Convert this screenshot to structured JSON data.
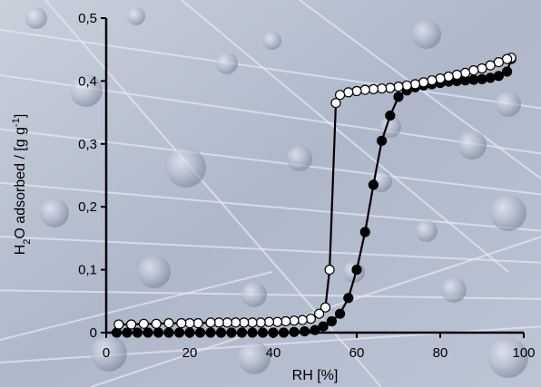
{
  "chart_data": {
    "type": "scatter",
    "xlabel": "RH [%]",
    "ylabel_parts": [
      "H",
      "2",
      "O adsorbed / [g g",
      "-1",
      "]"
    ],
    "xlim": [
      0,
      100
    ],
    "ylim": [
      0,
      0.5
    ],
    "xticks": [
      0,
      20,
      40,
      60,
      80,
      100
    ],
    "xtick_labels": [
      "0",
      "20",
      "40",
      "60",
      "80",
      "100"
    ],
    "yticks": [
      0,
      0.1,
      0.2,
      0.3,
      0.4,
      0.5
    ],
    "ytick_labels": [
      "0",
      "0,1",
      "0,2",
      "0,3",
      "0,4",
      "0,5"
    ],
    "grid": false,
    "series": [
      {
        "marker": "filled-circle",
        "color": "#000000",
        "x": [
          2.5,
          5,
          7.5,
          10,
          12.5,
          15,
          17.5,
          20,
          22.5,
          25,
          27.5,
          30,
          32.5,
          35,
          37.5,
          40,
          42.5,
          45,
          47.5,
          50,
          52,
          54,
          56,
          58,
          60,
          62,
          64,
          66,
          68,
          70,
          72,
          74,
          76,
          78,
          80,
          82,
          84,
          86,
          88,
          90,
          92,
          94,
          96,
          97
        ],
        "y": [
          0.0,
          0.0,
          0.0,
          0.0,
          0.0,
          0.0,
          0.0,
          0.0,
          0.0,
          0.0,
          0.0,
          0.0,
          0.0,
          0.0,
          0.0,
          0.0,
          0.0,
          0.001,
          0.002,
          0.004,
          0.01,
          0.018,
          0.03,
          0.055,
          0.1,
          0.16,
          0.235,
          0.305,
          0.345,
          0.375,
          0.385,
          0.39,
          0.393,
          0.395,
          0.397,
          0.399,
          0.4,
          0.401,
          0.402,
          0.403,
          0.405,
          0.408,
          0.415,
          0.435
        ]
      },
      {
        "marker": "open-circle",
        "color": "#000000",
        "x": [
          97,
          96,
          94,
          92,
          90,
          88,
          86,
          84,
          82,
          80,
          78,
          76,
          74,
          72,
          70,
          68,
          66,
          64,
          62,
          60,
          58,
          56,
          55,
          53.5,
          52.5,
          51,
          49,
          47,
          45,
          43,
          41,
          39,
          37,
          35,
          33,
          31,
          29,
          27,
          25,
          22,
          20,
          18,
          15,
          12,
          9,
          6,
          3
        ],
        "y": [
          0.437,
          0.435,
          0.43,
          0.425,
          0.42,
          0.417,
          0.413,
          0.41,
          0.407,
          0.404,
          0.401,
          0.398,
          0.395,
          0.393,
          0.391,
          0.389,
          0.388,
          0.387,
          0.386,
          0.384,
          0.382,
          0.378,
          0.365,
          0.1,
          0.04,
          0.03,
          0.022,
          0.02,
          0.019,
          0.018,
          0.017,
          0.017,
          0.016,
          0.016,
          0.016,
          0.016,
          0.016,
          0.016,
          0.016,
          0.015,
          0.015,
          0.015,
          0.015,
          0.014,
          0.014,
          0.013,
          0.013
        ]
      }
    ]
  }
}
